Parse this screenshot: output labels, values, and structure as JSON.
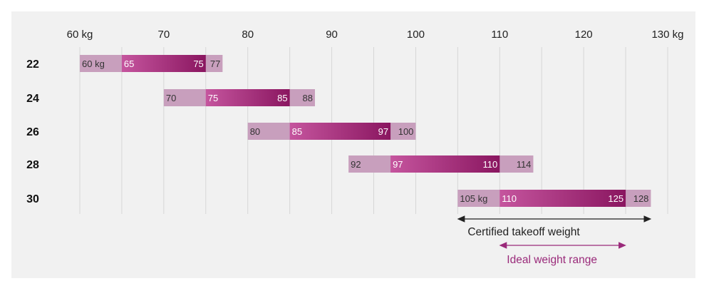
{
  "chart_data": {
    "type": "bar",
    "title": "",
    "xlabel": "",
    "ylabel": "",
    "xlim": [
      60,
      130
    ],
    "x_ticks": [
      "60 kg",
      "70",
      "80",
      "90",
      "100",
      "110",
      "120",
      "130 kg"
    ],
    "x_tick_values": [
      60,
      70,
      80,
      90,
      100,
      110,
      120,
      130
    ],
    "categories": [
      "22",
      "24",
      "26",
      "28",
      "30"
    ],
    "series": [
      {
        "name": "Certified takeoff weight",
        "ranges": [
          [
            60,
            77
          ],
          [
            70,
            88
          ],
          [
            80,
            100
          ],
          [
            92,
            114
          ],
          [
            105,
            128
          ]
        ],
        "start_labels": [
          "60 kg",
          "70",
          "80",
          "92",
          "105 kg"
        ],
        "end_labels": [
          "77",
          "88",
          "100",
          "114",
          "128"
        ]
      },
      {
        "name": "Ideal weight range",
        "ranges": [
          [
            65,
            75
          ],
          [
            75,
            85
          ],
          [
            85,
            97
          ],
          [
            97,
            110
          ],
          [
            110,
            125
          ]
        ],
        "start_labels": [
          "65",
          "75",
          "85",
          "97",
          "110"
        ],
        "end_labels": [
          "75",
          "85",
          "97",
          "110",
          "125"
        ]
      }
    ],
    "grid": true,
    "legend": "bottom-right",
    "colors": {
      "certified": "#c89fbd",
      "ideal_start": "#c5559e",
      "ideal_end": "#8a1660",
      "legend_certified": "#222222",
      "legend_ideal": "#9a2a7a",
      "grid": "#d6d6d6",
      "background": "#f1f1f1"
    },
    "legend_items": [
      {
        "label": "Certified takeoff weight",
        "from": 105,
        "to": 128
      },
      {
        "label": "Ideal weight range",
        "from": 110,
        "to": 125
      }
    ]
  }
}
